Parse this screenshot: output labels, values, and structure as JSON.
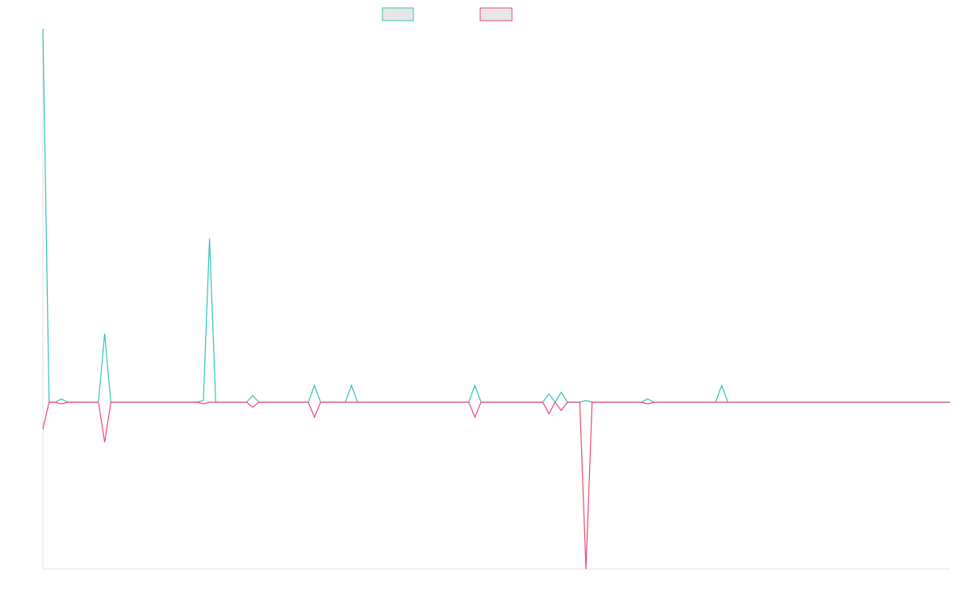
{
  "chart_data": {
    "type": "line",
    "title": "",
    "xlabel": "",
    "ylabel": "",
    "grid": false,
    "legend_position": "top-center",
    "ylim": [
      -1.0,
      2.24
    ],
    "series": [
      {
        "color": "#2ec4b6",
        "values": [
          2.24,
          0,
          0,
          0.02,
          0,
          0,
          0,
          0,
          0,
          0,
          0.41,
          0,
          0,
          0,
          0,
          0,
          0,
          0,
          0,
          0,
          0,
          0,
          0,
          0,
          0,
          0,
          0.01,
          0.98,
          0,
          0,
          0,
          0,
          0,
          0,
          0.04,
          0,
          0,
          0,
          0,
          0,
          0,
          0,
          0,
          0,
          0.1,
          0,
          0,
          0,
          0,
          0,
          0.1,
          0,
          0,
          0,
          0,
          0,
          0,
          0,
          0,
          0,
          0,
          0,
          0,
          0,
          0,
          0,
          0,
          0,
          0,
          0,
          0.1,
          0,
          0,
          0,
          0,
          0,
          0,
          0,
          0,
          0,
          0,
          0,
          0.05,
          0,
          0.06,
          0,
          0,
          0,
          0.01,
          0,
          0,
          0,
          0,
          0,
          0,
          0,
          0,
          0,
          0.02,
          0,
          0,
          0,
          0,
          0,
          0,
          0,
          0,
          0,
          0,
          0,
          0.1,
          0,
          0,
          0,
          0,
          0,
          0,
          0,
          0,
          0,
          0,
          0,
          0,
          0,
          0,
          0,
          0,
          0,
          0,
          0,
          0,
          0,
          0,
          0,
          0,
          0,
          0,
          0,
          0,
          0,
          0,
          0,
          0,
          0,
          0,
          0,
          0,
          0
        ]
      },
      {
        "color": "#f0466e",
        "values": [
          -0.16,
          0,
          0,
          -0.01,
          0,
          0,
          0,
          0,
          0,
          0,
          -0.24,
          0,
          0,
          0,
          0,
          0,
          0,
          0,
          0,
          0,
          0,
          0,
          0,
          0,
          0,
          0,
          -0.01,
          0,
          0,
          0,
          0,
          0,
          0,
          0,
          -0.03,
          0,
          0,
          0,
          0,
          0,
          0,
          0,
          0,
          0,
          -0.09,
          0,
          0,
          0,
          0,
          0,
          0,
          0,
          0,
          0,
          0,
          0,
          0,
          0,
          0,
          0,
          0,
          0,
          0,
          0,
          0,
          0,
          0,
          0,
          0,
          0,
          -0.09,
          0,
          0,
          0,
          0,
          0,
          0,
          0,
          0,
          0,
          0,
          0,
          -0.07,
          0,
          -0.05,
          0,
          0,
          0,
          -1.0,
          0,
          0,
          0,
          0,
          0,
          0,
          0,
          0,
          0,
          -0.01,
          0,
          0,
          0,
          0,
          0,
          0,
          0,
          0,
          0,
          0,
          0,
          0,
          0,
          0,
          0,
          0,
          0,
          0,
          0,
          0,
          0,
          0,
          0,
          0,
          0,
          0,
          0,
          0,
          0,
          0,
          0,
          0,
          0,
          0,
          0,
          0,
          0,
          0,
          0,
          0,
          0,
          0,
          0,
          0,
          0,
          0,
          0,
          0,
          0
        ]
      }
    ]
  }
}
